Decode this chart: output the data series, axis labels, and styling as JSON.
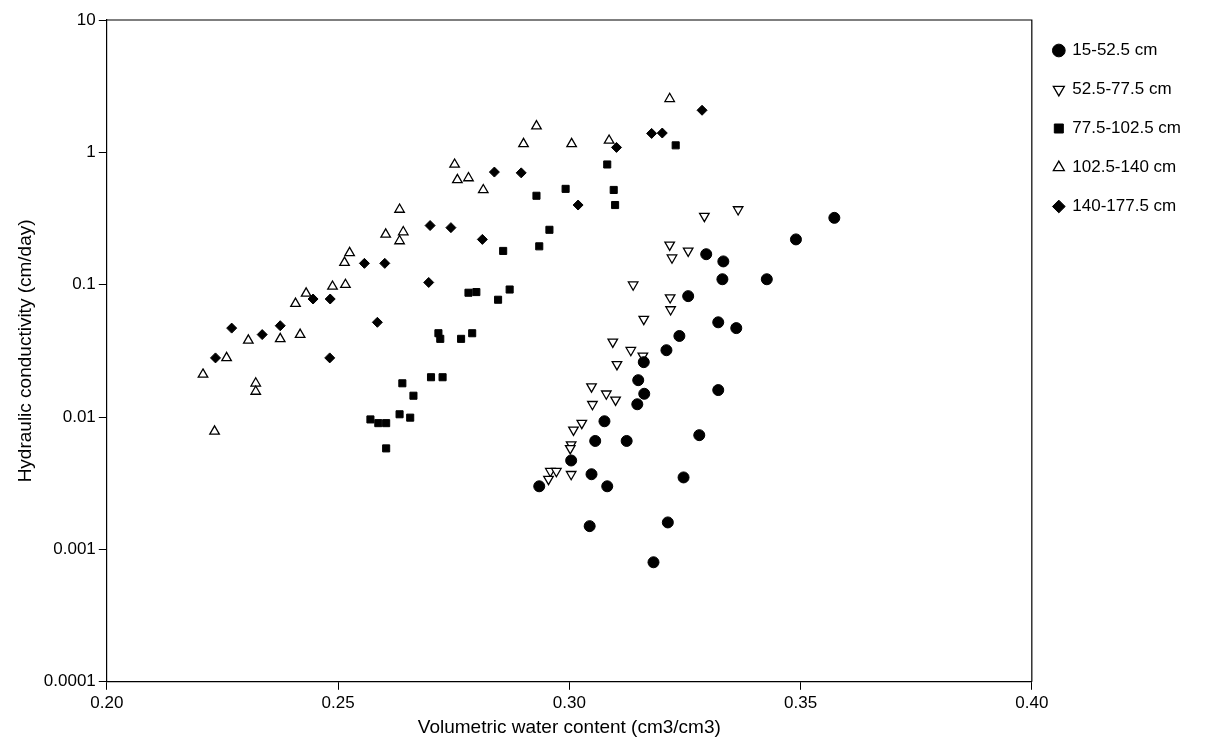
{
  "chart_data": {
    "type": "scatter",
    "xlabel": "Volumetric water content (cm3/cm3)",
    "ylabel": "Hydraulic conductivity (cm/day)",
    "log": "y",
    "xlim": [
      0.2,
      0.4
    ],
    "xticks": [
      {
        "value": 0.2,
        "label": "0.20"
      },
      {
        "value": 0.25,
        "label": "0.25"
      },
      {
        "value": 0.3,
        "label": "0.30"
      },
      {
        "value": 0.35,
        "label": "0.35"
      },
      {
        "value": 0.4,
        "label": "0.40"
      }
    ],
    "ylim": [
      0.0001,
      10
    ],
    "yticks": [
      0.0001,
      0.001,
      0.01,
      0.1,
      1,
      10
    ],
    "grid": false,
    "legend": "top right",
    "series": [
      {
        "name": "15-52.5 cm",
        "color": "#000000",
        "marker": "circle",
        "x": [
          0.349,
          0.3573,
          0.3296,
          0.3333,
          0.3331,
          0.3427,
          0.3257,
          0.3322,
          0.3361,
          0.3238,
          0.321,
          0.3161,
          0.3149,
          0.3162,
          0.3147,
          0.3322,
          0.3076,
          0.3056,
          0.3124,
          0.3281,
          0.3004,
          0.3048,
          0.3082,
          0.2935,
          0.3247,
          0.3044,
          0.3213,
          0.3182
        ],
        "values": [
          0.22,
          0.32,
          0.17,
          0.15,
          0.11,
          0.11,
          0.082,
          0.052,
          0.047,
          0.041,
          0.032,
          0.026,
          0.019,
          0.015,
          0.0125,
          0.016,
          0.0093,
          0.0066,
          0.0066,
          0.0073,
          0.0047,
          0.0037,
          0.003,
          0.003,
          0.0035,
          0.0015,
          0.0016,
          0.0008
        ]
      },
      {
        "name": "52.5-77.5 cm",
        "color": "#000000",
        "marker": "triangle-down-open",
        "x": [
          0.3217,
          0.3257,
          0.3222,
          0.3138,
          0.3218,
          0.3219,
          0.3161,
          0.3094,
          0.3133,
          0.3159,
          0.3103,
          0.3048,
          0.308,
          0.31,
          0.305,
          0.3027,
          0.3009,
          0.3004,
          0.3002,
          0.2959,
          0.2972,
          0.3004,
          0.2955,
          0.3292,
          0.3365
        ],
        "values": [
          0.2,
          0.18,
          0.16,
          0.1,
          0.08,
          0.065,
          0.055,
          0.037,
          0.032,
          0.029,
          0.025,
          0.017,
          0.015,
          0.0135,
          0.0125,
          0.009,
          0.008,
          0.0062,
          0.0058,
          0.0039,
          0.0039,
          0.0037,
          0.0034,
          0.33,
          0.37
        ]
      },
      {
        "name": "77.5-102.5 cm",
        "color": "#000000",
        "marker": "square",
        "x": [
          0.257,
          0.2587,
          0.2604,
          0.2604,
          0.2633,
          0.2656,
          0.2639,
          0.2663,
          0.2701,
          0.2726,
          0.2717,
          0.2721,
          0.2766,
          0.279,
          0.2782,
          0.2799,
          0.2846,
          0.2871,
          0.2857,
          0.2935,
          0.2957,
          0.2929,
          0.2992,
          0.3082,
          0.3096,
          0.3099,
          0.323
        ],
        "values": [
          0.0096,
          0.009,
          0.009,
          0.0058,
          0.0105,
          0.0099,
          0.018,
          0.0145,
          0.02,
          0.02,
          0.043,
          0.039,
          0.039,
          0.043,
          0.087,
          0.088,
          0.077,
          0.092,
          0.18,
          0.195,
          0.26,
          0.47,
          0.53,
          0.81,
          0.52,
          0.4,
          1.13
        ]
      },
      {
        "name": "102.5-140 cm",
        "color": "#000000",
        "marker": "triangle-open",
        "x": [
          0.2208,
          0.2233,
          0.2259,
          0.2306,
          0.2322,
          0.2322,
          0.2375,
          0.2418,
          0.2408,
          0.2431,
          0.2488,
          0.2516,
          0.2514,
          0.2525,
          0.2603,
          0.2633,
          0.2641,
          0.2633,
          0.2752,
          0.2758,
          0.2782,
          0.2814,
          0.2929,
          0.2901,
          0.3005,
          0.3086,
          0.3217
        ],
        "values": [
          0.021,
          0.0078,
          0.028,
          0.038,
          0.018,
          0.0156,
          0.039,
          0.042,
          0.072,
          0.086,
          0.097,
          0.1,
          0.147,
          0.174,
          0.24,
          0.214,
          0.25,
          0.37,
          0.81,
          0.62,
          0.64,
          0.52,
          1.58,
          1.16,
          1.16,
          1.23,
          2.54
        ]
      },
      {
        "name": "140-177.5 cm",
        "color": "#000000",
        "marker": "diamond",
        "x": [
          0.2235,
          0.227,
          0.2336,
          0.2375,
          0.2446,
          0.2483,
          0.2482,
          0.2557,
          0.2601,
          0.2585,
          0.2696,
          0.2699,
          0.2744,
          0.2812,
          0.2838,
          0.2896,
          0.3019,
          0.3102,
          0.3178,
          0.3201,
          0.3287
        ],
        "values": [
          0.028,
          0.047,
          0.042,
          0.049,
          0.078,
          0.078,
          0.028,
          0.145,
          0.145,
          0.052,
          0.104,
          0.28,
          0.27,
          0.22,
          0.71,
          0.7,
          0.4,
          1.09,
          1.39,
          1.4,
          2.08
        ]
      }
    ]
  }
}
